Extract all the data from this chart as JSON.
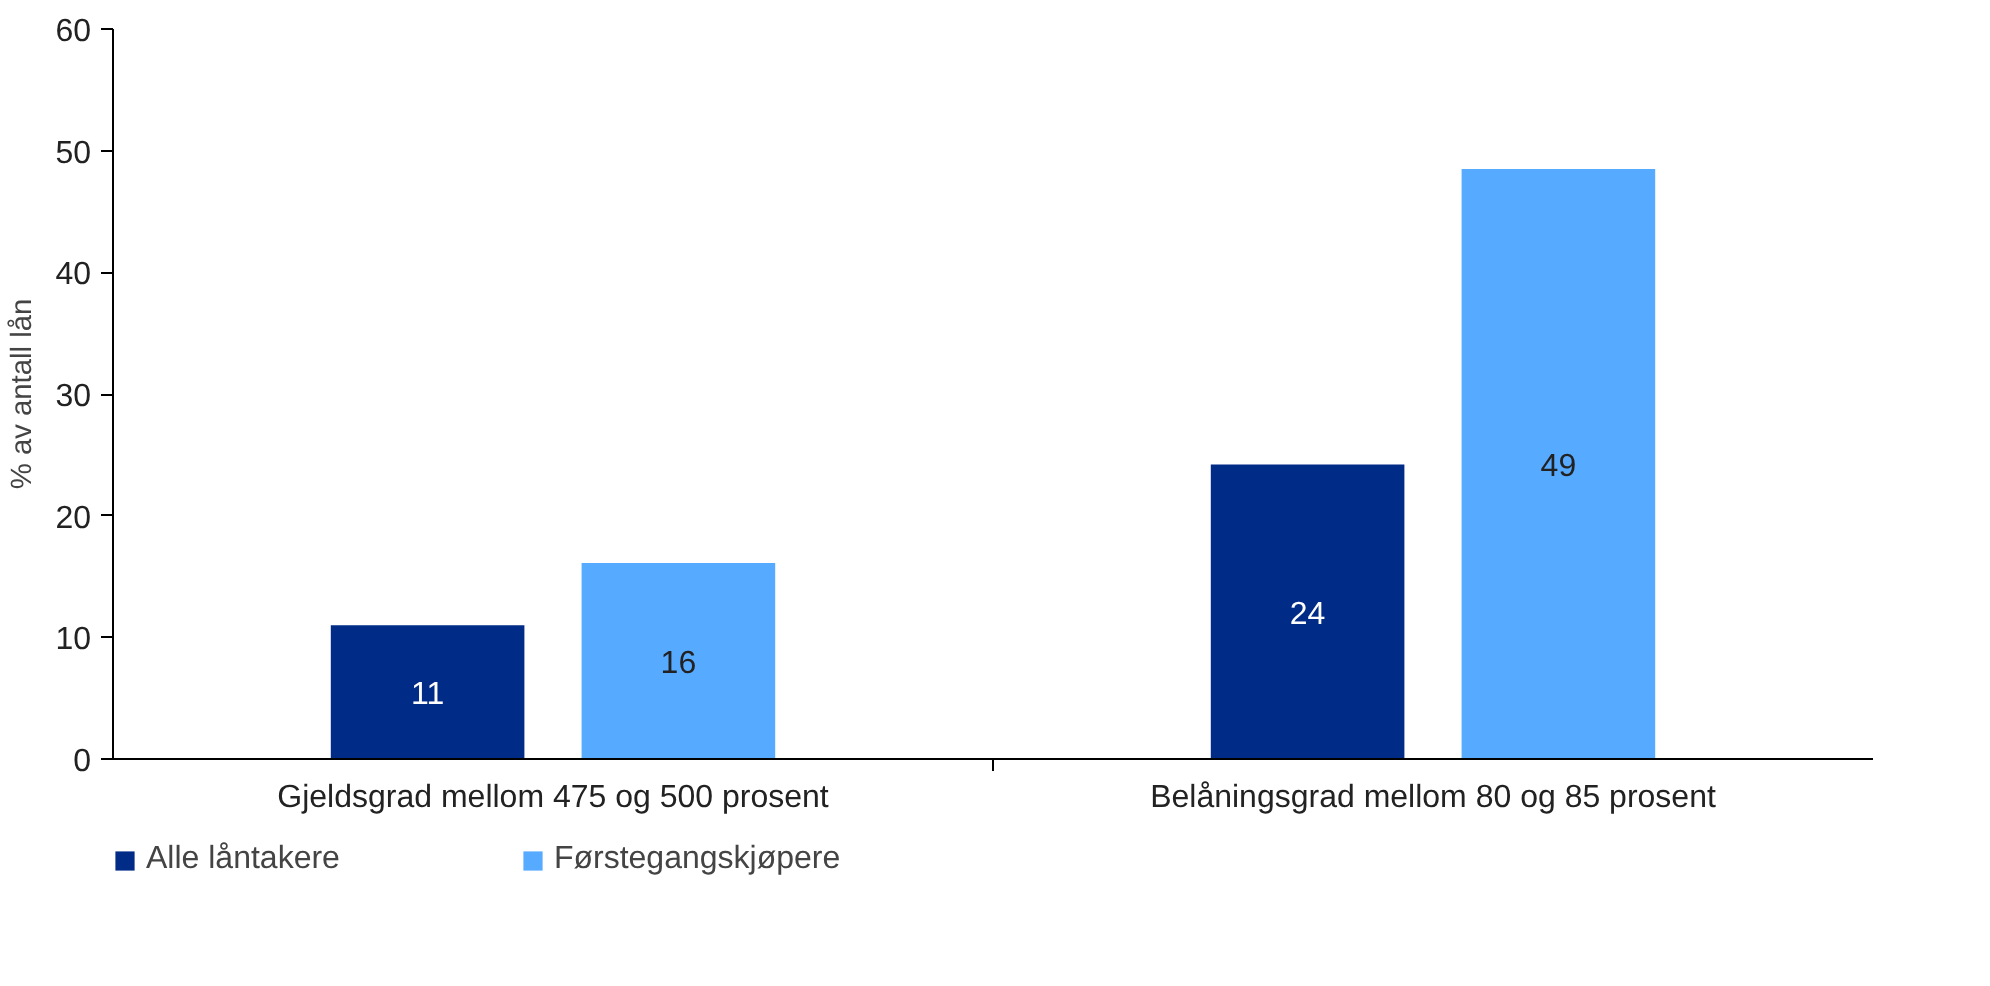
{
  "chart_data": {
    "type": "bar",
    "categories": [
      "Gjeldsgrad mellom 475 og 500 prosent",
      "Belåningsgrad mellom 80 og 85 prosent"
    ],
    "ylabel": "% av antall lån",
    "ylim": [
      0,
      60
    ],
    "yticks": [
      0,
      10,
      20,
      30,
      40,
      50,
      60
    ],
    "grid": false,
    "legend": "bottom left",
    "series": [
      {
        "name": "Alle låntakere",
        "color": "#002b86",
        "values": [
          11.0,
          24.2
        ],
        "value_labels": [
          "11",
          "24"
        ]
      },
      {
        "name": "Førstegangskjøpere",
        "color": "#56aaff",
        "values": [
          16.1,
          48.5
        ],
        "value_labels": [
          "16",
          "49"
        ]
      }
    ]
  }
}
